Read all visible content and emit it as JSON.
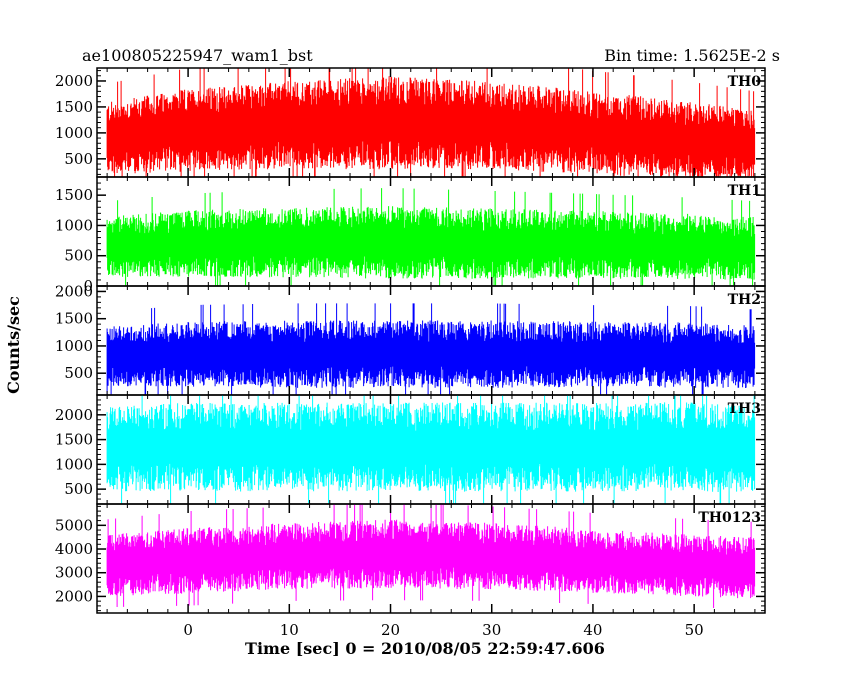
{
  "chart_data": {
    "type": "line",
    "title_left": "ae100805225947_wam1_bst",
    "title_right": "Bin time: 1.5625E-2 s",
    "xlabel": "Time [sec] 0 = 2010/08/05 22:59:47.606",
    "ylabel": "Counts/sec",
    "xlim": [
      -9,
      57
    ],
    "x_ticks": [
      0,
      10,
      20,
      30,
      40,
      50
    ],
    "x_tick_labels": [
      "0",
      "10",
      "20",
      "30",
      "40",
      "50"
    ],
    "data_range": [
      -8,
      56
    ],
    "bin_time": 0.015625,
    "panels": [
      {
        "name": "TH0",
        "color": "#ff0000",
        "ylim": [
          150,
          2250
        ],
        "y_ticks": [
          500,
          1000,
          1500,
          2000
        ],
        "y_tick_labels": [
          "500",
          "1000",
          "1500",
          "2000"
        ],
        "envelope": {
          "x": [
            -8,
            0,
            10,
            20,
            30,
            40,
            50,
            56
          ],
          "mean": [
            900,
            1050,
            1150,
            1200,
            1150,
            1000,
            850,
            750
          ],
          "spread": [
            700,
            800,
            850,
            900,
            850,
            800,
            750,
            700
          ]
        }
      },
      {
        "name": "TH1",
        "color": "#00ff00",
        "ylim": [
          0,
          1800
        ],
        "y_ticks": [
          0,
          500,
          1000,
          1500
        ],
        "y_tick_labels": [
          "0",
          "500",
          "1000",
          "1500"
        ],
        "envelope": {
          "x": [
            -8,
            0,
            10,
            20,
            30,
            40,
            50,
            56
          ],
          "mean": [
            650,
            700,
            720,
            720,
            700,
            680,
            650,
            620
          ],
          "spread": [
            500,
            550,
            580,
            600,
            580,
            560,
            540,
            520
          ]
        }
      },
      {
        "name": "TH2",
        "color": "#0000ff",
        "ylim": [
          100,
          2100
        ],
        "y_ticks": [
          500,
          1000,
          1500,
          2000
        ],
        "y_tick_labels": [
          "500",
          "1000",
          "1500",
          "2000"
        ],
        "envelope": {
          "x": [
            -8,
            0,
            10,
            20,
            30,
            40,
            50,
            56
          ],
          "mean": [
            800,
            850,
            850,
            850,
            850,
            850,
            830,
            800
          ],
          "spread": [
            550,
            600,
            620,
            620,
            620,
            600,
            600,
            580
          ]
        }
      },
      {
        "name": "TH3",
        "color": "#00ffff",
        "ylim": [
          200,
          2400
        ],
        "y_ticks": [
          500,
          1000,
          1500,
          2000
        ],
        "y_tick_labels": [
          "500",
          "1000",
          "1500",
          "2000"
        ],
        "envelope": {
          "x": [
            -8,
            0,
            10,
            20,
            30,
            40,
            50,
            56
          ],
          "mean": [
            1300,
            1350,
            1350,
            1350,
            1350,
            1350,
            1350,
            1300
          ],
          "spread": [
            850,
            900,
            900,
            900,
            900,
            900,
            900,
            880
          ]
        }
      },
      {
        "name": "TH0123",
        "color": "#ff00ff",
        "ylim": [
          1300,
          5900
        ],
        "y_ticks": [
          2000,
          3000,
          4000,
          5000
        ],
        "y_tick_labels": [
          "2000",
          "3000",
          "4000",
          "5000"
        ],
        "envelope": {
          "x": [
            -8,
            0,
            10,
            20,
            30,
            40,
            50,
            56
          ],
          "mean": [
            3300,
            3500,
            3700,
            3800,
            3700,
            3500,
            3300,
            3200
          ],
          "spread": [
            1300,
            1400,
            1400,
            1450,
            1400,
            1350,
            1300,
            1300
          ]
        }
      }
    ]
  }
}
